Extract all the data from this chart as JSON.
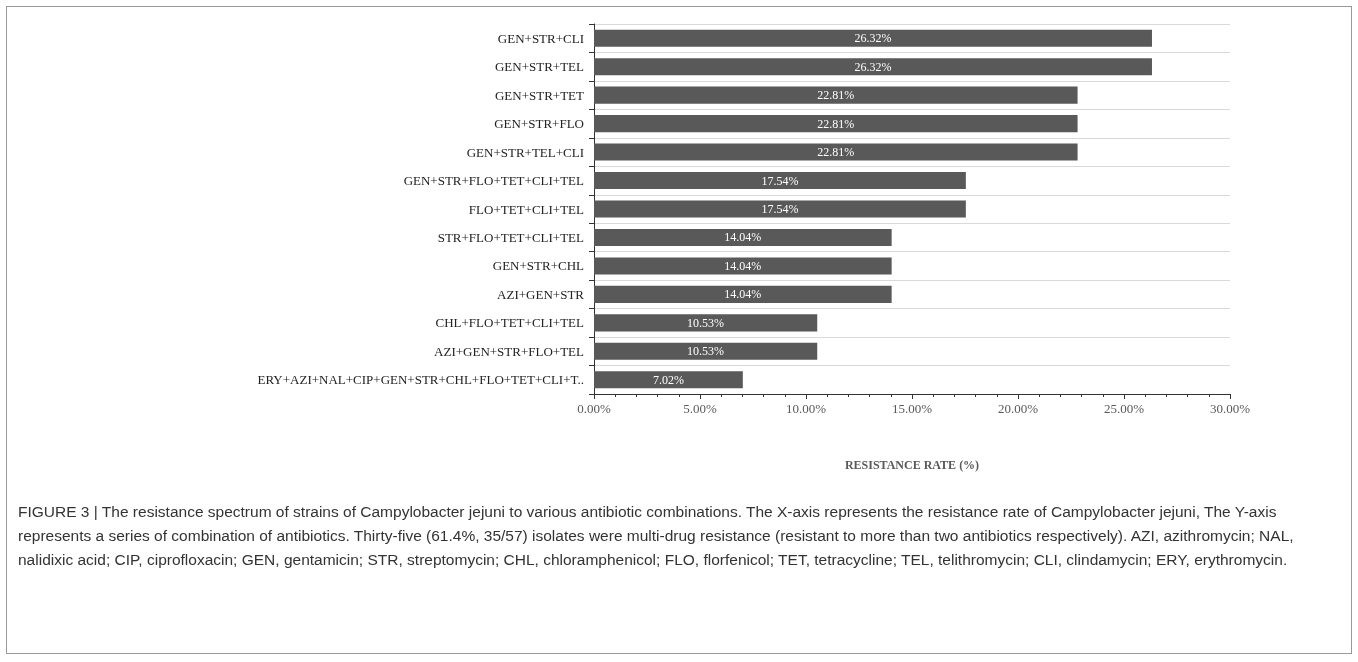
{
  "chart_data": {
    "type": "bar",
    "orientation": "horizontal",
    "xlabel": "RESISTANCE RATE (%)",
    "categories": [
      "GEN+STR+CLI",
      "GEN+STR+TEL",
      "GEN+STR+TET",
      "GEN+STR+FLO",
      "GEN+STR+TEL+CLI",
      "GEN+STR+FLO+TET+CLI+TEL",
      "FLO+TET+CLI+TEL",
      "STR+FLO+TET+CLI+TEL",
      "GEN+STR+CHL",
      "AZI+GEN+STR",
      "CHL+FLO+TET+CLI+TEL",
      "AZI+GEN+STR+FLO+TEL",
      "ERY+AZI+NAL+CIP+GEN+STR+CHL+FLO+TET+CLI+T.."
    ],
    "values": [
      26.32,
      26.32,
      22.81,
      22.81,
      22.81,
      17.54,
      17.54,
      14.04,
      14.04,
      14.04,
      10.53,
      10.53,
      7.02
    ],
    "value_labels": [
      "26.32%",
      "26.32%",
      "22.81%",
      "22.81%",
      "22.81%",
      "17.54%",
      "17.54%",
      "14.04%",
      "14.04%",
      "14.04%",
      "10.53%",
      "10.53%",
      "7.02%"
    ],
    "color": "#595959",
    "xlim": [
      0,
      30
    ],
    "xticks": [
      {
        "value": 0,
        "label": "0.00%"
      },
      {
        "value": 5,
        "label": "5.00%"
      },
      {
        "value": 10,
        "label": "10.00%"
      },
      {
        "value": 15,
        "label": "15.00%"
      },
      {
        "value": 20,
        "label": "20.00%"
      },
      {
        "value": 25,
        "label": "25.00%"
      },
      {
        "value": 30,
        "label": "30.00%"
      }
    ],
    "grid": "y",
    "annotations": [
      "FIGURE 3 | The resistance spectrum of strains of Campylobacter jejuni to various antibiotic combinations. The X-axis represents the resistance rate of Campylobacter jejuni, The Y-axis represents a series of combination of antibiotics. Thirty-five (61.4%, 35/57) isolates were multi-drug resistance (resistant to more than two antibiotics respectively). AZI, azithromycin; NAL, nalidixic acid; CIP, ciprofloxacin; GEN, gentamicin; STR, streptomycin; CHL, chloramphenicol; FLO, florfenicol; TET, tetracycline; TEL, telithromycin; CLI, clindamycin; ERY, erythromycin."
    ]
  }
}
